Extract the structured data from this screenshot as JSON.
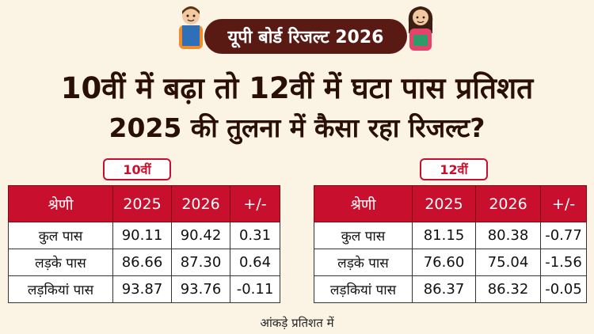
{
  "banner": {
    "title": "यूपी बोर्ड रिजल्ट 2026"
  },
  "headline": {
    "line1": "10वीं में बढ़ा तो 12वीं में घटा पास प्रतिशत",
    "line2": "2025 की तुलना में कैसा रहा रिजल्ट?"
  },
  "class10": {
    "label": "10वीं",
    "headers": [
      "श्रेणी",
      "2025",
      "2026",
      "+/-"
    ],
    "rows": [
      [
        "कुल पास",
        "90.11",
        "90.42",
        "0.31"
      ],
      [
        "लड़के पास",
        "86.66",
        "87.30",
        "0.64"
      ],
      [
        "लड़कियां पास",
        "93.87",
        "93.76",
        "-0.11"
      ]
    ]
  },
  "class12": {
    "label": "12वीं",
    "headers": [
      "श्रेणी",
      "2025",
      "2026",
      "+/-"
    ],
    "rows": [
      [
        "कुल पास",
        "81.15",
        "80.38",
        "-0.77"
      ],
      [
        "लड़के पास",
        "76.60",
        "75.04",
        "-1.56"
      ],
      [
        "लड़कियां पास",
        "86.37",
        "86.32",
        "-0.05"
      ]
    ]
  },
  "footnote": "आंकड़े प्रतिशत में",
  "colors": {
    "header": "#c8102e",
    "banner": "#5a1a14",
    "background": "#fbf3e4"
  },
  "icons": [
    "student-boy-icon",
    "student-girl-icon"
  ]
}
